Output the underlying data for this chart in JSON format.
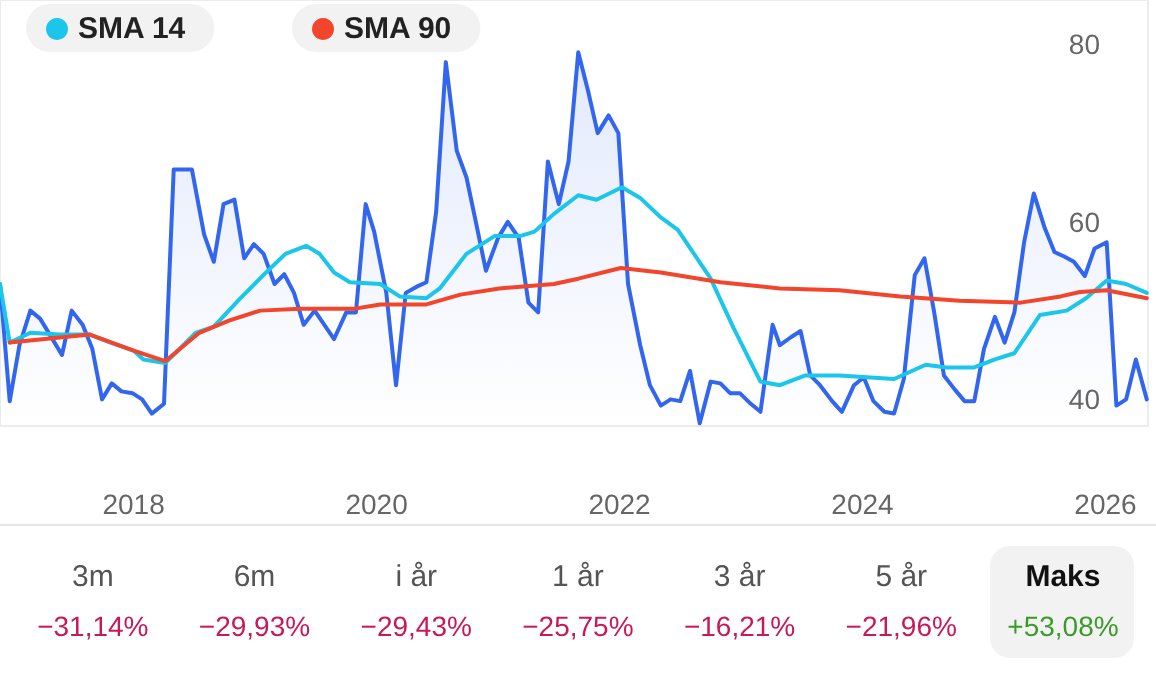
{
  "chart_data": [
    {
      "type": "line",
      "legend": "top left",
      "grid": false,
      "marker": "none",
      "xlim": [
        2016.9,
        2026.35
      ],
      "xticks": [
        2018,
        2020,
        2022,
        2024,
        2026
      ],
      "ylim": [
        37,
        85
      ],
      "yticks": [
        40,
        60,
        80
      ],
      "series": [
        {
          "type": "area",
          "color": "#3366ee",
          "x": [
            2016.9,
            2016.98,
            2017.06,
            2017.15,
            2017.23,
            2017.31,
            2017.41,
            2017.49,
            2017.58,
            2017.66,
            2017.74,
            2017.82,
            2017.9,
            2017.99,
            2018.07,
            2018.15,
            2018.25,
            2018.33,
            2018.48,
            2018.58,
            2018.66,
            2018.74,
            2018.83,
            2018.91,
            2018.99,
            2019.07,
            2019.16,
            2019.24,
            2019.32,
            2019.4,
            2019.49,
            2019.57,
            2019.65,
            2019.75,
            2019.83,
            2019.91,
            2019.98,
            2020.08,
            2020.16,
            2020.24,
            2020.33,
            2020.41,
            2020.49,
            2020.57,
            2020.66,
            2020.74,
            2020.82,
            2020.9,
            2021.0,
            2021.08,
            2021.17,
            2021.25,
            2021.33,
            2021.41,
            2021.5,
            2021.58,
            2021.66,
            2021.74,
            2021.82,
            2021.91,
            2021.99,
            2022.07,
            2022.17,
            2022.25,
            2022.34,
            2022.42,
            2022.5,
            2022.58,
            2022.66,
            2022.75,
            2022.83,
            2022.91,
            2022.99,
            2023.08,
            2023.16,
            2023.26,
            2023.32,
            2023.41,
            2023.49,
            2023.57,
            2023.65,
            2023.75,
            2023.83,
            2023.93,
            2024.01,
            2024.09,
            2024.18,
            2024.26,
            2024.34,
            2024.43,
            2024.51,
            2024.59,
            2024.67,
            2024.76,
            2024.84,
            2024.92,
            2025.0,
            2025.09,
            2025.17,
            2025.25,
            2025.33,
            2025.41,
            2025.5,
            2025.58,
            2025.66,
            2025.74,
            2025.83,
            2025.91,
            2026.01,
            2026.09,
            2026.17,
            2026.25,
            2026.34
          ],
          "values": [
            53,
            39.8,
            46.1,
            50,
            49.1,
            47.3,
            45,
            50,
            48.4,
            45.7,
            40,
            41.8,
            40.9,
            40.7,
            40,
            38.4,
            39.5,
            65.9,
            65.9,
            58.6,
            55.5,
            62,
            62.5,
            55.9,
            57.5,
            56.4,
            53,
            54.1,
            52,
            48.4,
            50,
            48.4,
            46.8,
            49.8,
            49.8,
            62,
            58.9,
            52,
            41.6,
            52,
            52.7,
            53.2,
            61.1,
            78,
            68,
            65,
            59.8,
            54.5,
            58.2,
            60,
            58.2,
            50.9,
            49.8,
            66.8,
            62,
            66.8,
            79.1,
            74.8,
            70,
            72,
            70,
            53,
            46.1,
            41.6,
            39.3,
            40,
            39.8,
            43.2,
            37.3,
            42,
            41.8,
            40.7,
            40.7,
            39.5,
            38.6,
            48.4,
            46.1,
            47,
            47.7,
            42.7,
            41.6,
            39.8,
            38.6,
            41.6,
            42.5,
            39.8,
            38.6,
            38.4,
            42.3,
            54,
            55.9,
            49.8,
            42.7,
            41.1,
            39.8,
            39.8,
            45.7,
            49.3,
            46.4,
            49.8,
            57.7,
            63.2,
            59.3,
            56.6,
            56.1,
            55.5,
            53.9,
            57,
            57.7,
            39.3,
            40,
            44.5,
            40
          ]
        },
        {
          "name": "SMA 14",
          "color": "#1cc6ea",
          "x": [
            2016.9,
            2016.98,
            2017.15,
            2017.39,
            2017.64,
            2017.81,
            2018.0,
            2018.08,
            2018.26,
            2018.38,
            2018.51,
            2018.66,
            2018.88,
            2019.09,
            2019.25,
            2019.42,
            2019.53,
            2019.65,
            2019.78,
            2020.03,
            2020.19,
            2020.41,
            2020.52,
            2020.74,
            2020.97,
            2021.18,
            2021.3,
            2021.46,
            2021.66,
            2021.81,
            2022.02,
            2022.17,
            2022.34,
            2022.48,
            2022.75,
            2022.94,
            2023.16,
            2023.32,
            2023.53,
            2023.81,
            2024.26,
            2024.52,
            2024.69,
            2024.92,
            2025.09,
            2025.25,
            2025.46,
            2025.68,
            2025.84,
            2026.01,
            2026.17,
            2026.34
          ],
          "values": [
            53,
            46.4,
            47.5,
            47.3,
            47.3,
            46.4,
            45.5,
            44.5,
            44.1,
            45.7,
            47.5,
            48.2,
            51.4,
            54.3,
            56.4,
            57.3,
            56.4,
            54.3,
            53.2,
            53,
            51.6,
            51.4,
            52.5,
            56.4,
            58.4,
            58.4,
            58.9,
            60.9,
            63,
            62.5,
            63.9,
            62.7,
            60.5,
            59.1,
            53.6,
            48,
            42,
            41.6,
            42.7,
            42.7,
            42.3,
            43.9,
            43.6,
            43.6,
            44.5,
            45.2,
            49.5,
            50,
            51.4,
            53.4,
            53,
            52
          ]
        },
        {
          "name": "SMA 90",
          "color": "#f2452c",
          "x": [
            2016.98,
            2017.64,
            2018.0,
            2018.26,
            2018.54,
            2018.79,
            2019.04,
            2019.37,
            2019.81,
            2020.03,
            2020.41,
            2020.69,
            2021.01,
            2021.46,
            2021.66,
            2022.01,
            2022.34,
            2022.83,
            2023.32,
            2023.81,
            2024.31,
            2024.8,
            2025.3,
            2025.63,
            2025.79,
            2026.01,
            2026.34
          ],
          "values": [
            46.4,
            47.3,
            45.5,
            44.3,
            47.5,
            48.9,
            50,
            50.2,
            50.2,
            50.7,
            50.7,
            51.8,
            52.5,
            53,
            53.6,
            54.8,
            54.3,
            53.2,
            52.5,
            52.3,
            51.6,
            51.1,
            50.9,
            51.6,
            52.1,
            52.3,
            51.4
          ]
        }
      ]
    },
    {
      "type": "other",
      "categories": [
        "3m",
        "6m",
        "i år",
        "1 år",
        "3 år",
        "5 år",
        "Maks"
      ],
      "values": [
        -31.14,
        -29.93,
        -29.43,
        -25.75,
        -16.21,
        -21.96,
        53.08
      ],
      "value_labels": [
        "−31,14%",
        "−29,93%",
        "−29,43%",
        "−25,75%",
        "−16,21%",
        "−21,96%",
        "+53,08%"
      ]
    }
  ]
}
